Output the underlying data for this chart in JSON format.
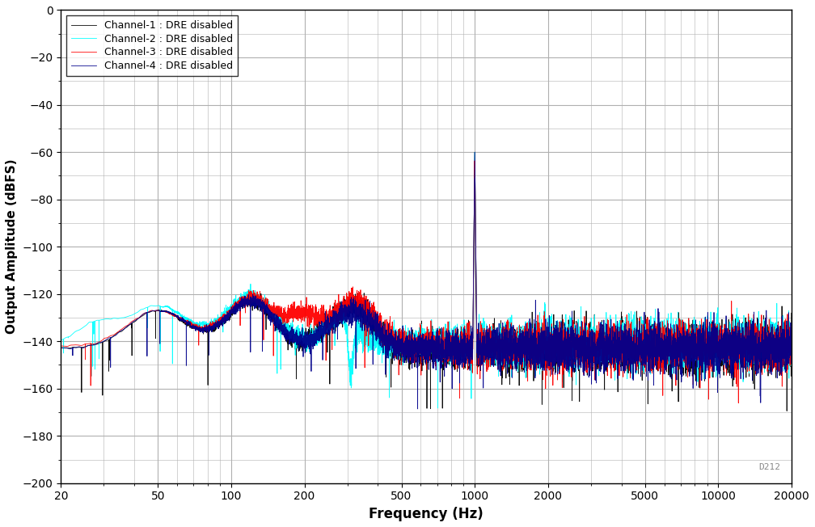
{
  "title": "",
  "xlabel": "Frequency (Hz)",
  "ylabel": "Output Amplitude (dBFS)",
  "xlim": [
    20,
    20000
  ],
  "ylim": [
    -200,
    0
  ],
  "yticks": [
    0,
    -20,
    -40,
    -60,
    -80,
    -100,
    -120,
    -140,
    -160,
    -180,
    -200
  ],
  "colors": {
    "ch1": "#000000",
    "ch2": "#00ffff",
    "ch3": "#ff0000",
    "ch4": "#00008b"
  },
  "legend_labels": [
    "Channel-1 : DRE disabled",
    "Channel-2 : DRE disabled",
    "Channel-3 : DRE disabled",
    "Channel-4 : DRE disabled"
  ],
  "signal_freq": 1000,
  "signal_amplitude": -60,
  "noise_floor": -143,
  "grid_color": "#b0b0b0",
  "background_color": "#ffffff",
  "watermark": "D212"
}
